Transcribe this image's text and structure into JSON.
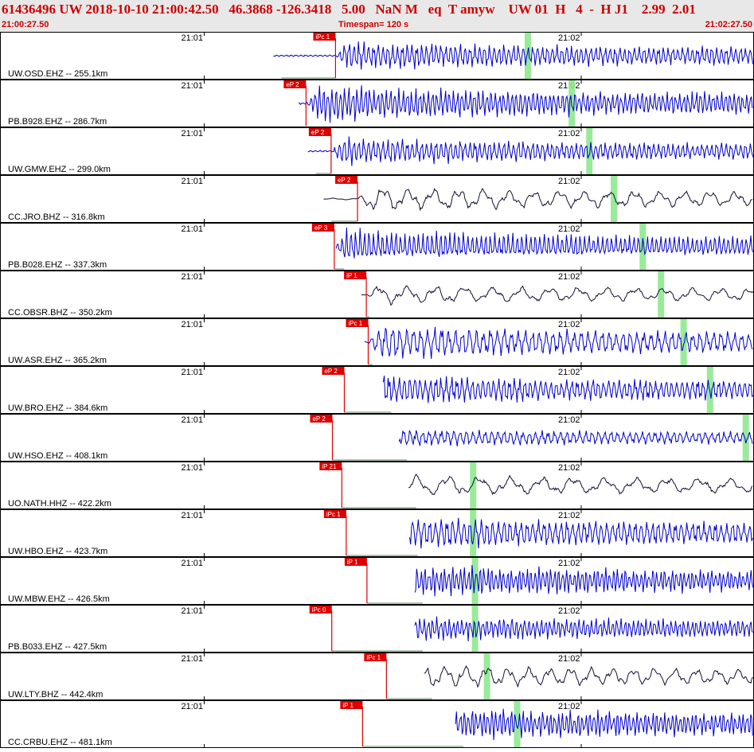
{
  "header": {
    "title": "61436496 UW 2018-10-10 21:00:42.50   46.3868 -126.3418   5.00   NaN M   eq  T amyw    UW 01  H   4  -  H J1    2.99  2.01",
    "start_time": "21:00:27.50",
    "timespan": "Timespan= 120 s",
    "end_time": "21:02:27.50"
  },
  "colors": {
    "header_text": "#cc0000",
    "pick": "#dd0000",
    "s_window": "#8ee88e",
    "trace_blue": "#0000cc",
    "trace_black": "#111133"
  },
  "chart_data": {
    "type": "line",
    "x_unit": "s after 21:00:27.50",
    "xlim": [
      0,
      120
    ],
    "minute_ticks": [
      {
        "label": "21:01",
        "t": 32.5
      },
      {
        "label": "21:02",
        "t": 92.5
      }
    ],
    "series": [
      {
        "name": "UW.OSD.EHZ -- 255.1km",
        "pick": "iPc 1",
        "pick_t": 53.4,
        "s_t": 84.0,
        "data_start": 43.5,
        "amp": 0.75,
        "freq": 1.3,
        "style": "blue"
      },
      {
        "name": "PB.B928.EHZ -- 286.7km",
        "pick": "eP 2",
        "pick_t": 48.7,
        "s_t": 91.0,
        "data_start": 47.5,
        "amp": 0.95,
        "freq": 1.5,
        "style": "blue"
      },
      {
        "name": "UW.GMW.EHZ -- 299.0km",
        "pick": "eP 2",
        "pick_t": 52.7,
        "s_t": 93.8,
        "data_start": 49.0,
        "amp": 0.7,
        "freq": 1.3,
        "style": "blue"
      },
      {
        "name": "CC.JRO.BHZ -- 316.8km",
        "pick": "eP 2",
        "pick_t": 56.9,
        "s_t": 97.7,
        "data_start": 51.5,
        "amp": 0.6,
        "freq": 0.25,
        "style": "black"
      },
      {
        "name": "PB.B028.EHZ -- 337.3km",
        "pick": "eP 3",
        "pick_t": 53.2,
        "s_t": 102.3,
        "data_start": 53.5,
        "amp": 0.85,
        "freq": 1.4,
        "style": "blue"
      },
      {
        "name": "CC.OBSR.BHZ -- 350.2km",
        "pick": "iP 1",
        "pick_t": 58.3,
        "s_t": 105.2,
        "data_start": 57.5,
        "amp": 0.5,
        "freq": 0.22,
        "style": "black"
      },
      {
        "name": "UW.ASR.EHZ -- 365.2km",
        "pick": "iPc 1",
        "pick_t": 58.6,
        "s_t": 108.8,
        "data_start": 58.0,
        "amp": 0.85,
        "freq": 0.9,
        "style": "blue"
      },
      {
        "name": "UW.BRO.EHZ -- 384.6km",
        "pick": "eP 2",
        "pick_t": 54.8,
        "s_t": 113.0,
        "data_start": 61.0,
        "amp": 0.8,
        "freq": 1.2,
        "style": "blue"
      },
      {
        "name": "UW.HSO.EHZ -- 408.1km",
        "pick": "eP 2",
        "pick_t": 52.9,
        "s_t": 118.7,
        "data_start": 63.5,
        "amp": 0.5,
        "freq": 1.0,
        "style": "blue"
      },
      {
        "name": "UO.NATH.HHZ -- 422.2km",
        "pick": "iP 21",
        "pick_t": 54.4,
        "s_t": 75.3,
        "data_start": 65.0,
        "amp": 0.6,
        "freq": 0.2,
        "style": "black"
      },
      {
        "name": "UW.HBO.EHZ -- 423.7km",
        "pick": "iPc 1",
        "pick_t": 55.1,
        "s_t": 75.3,
        "data_start": 65.2,
        "amp": 0.9,
        "freq": 1.1,
        "style": "blue"
      },
      {
        "name": "UW.MBW.EHZ -- 426.5km",
        "pick": "iP 1",
        "pick_t": 58.4,
        "s_t": 75.6,
        "data_start": 66.0,
        "amp": 0.9,
        "freq": 1.6,
        "style": "blue"
      },
      {
        "name": "PB.B033.EHZ -- 427.5km",
        "pick": "iPc 0",
        "pick_t": 52.8,
        "s_t": 75.6,
        "data_start": 66.0,
        "amp": 0.75,
        "freq": 1.5,
        "style": "blue"
      },
      {
        "name": "UW.LTY.BHZ -- 442.4km",
        "pick": "iPc 1",
        "pick_t": 61.5,
        "s_t": 77.5,
        "data_start": 67.5,
        "amp": 0.6,
        "freq": 0.3,
        "style": "black"
      },
      {
        "name": "CC.CRBU.EHZ -- 481.1km",
        "pick": "iP 1",
        "pick_t": 57.7,
        "s_t": 82.3,
        "data_start": 72.5,
        "amp": 0.95,
        "freq": 1.6,
        "style": "blue"
      }
    ]
  }
}
